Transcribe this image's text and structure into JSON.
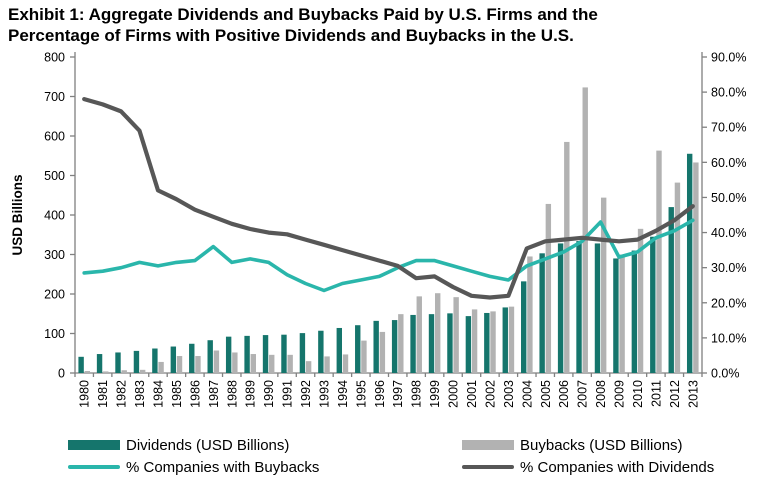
{
  "title": {
    "line1": "Exhibit 1: Aggregate Dividends and Buybacks Paid by U.S. Firms and the",
    "line2": "Percentage of Firms with Positive Dividends and Buybacks in the U.S."
  },
  "colors": {
    "dividends_bar": "#15756c",
    "buybacks_bar": "#b2b2b2",
    "pct_buybacks_line": "#2ab6ab",
    "pct_dividends_line": "#575757",
    "axis": "#808080",
    "text": "#000000",
    "background": "#ffffff"
  },
  "chart_data": {
    "type": "bar",
    "subtype": "combo-bar-line-dual-axis",
    "categories": [
      1980,
      1981,
      1982,
      1983,
      1984,
      1985,
      1986,
      1987,
      1988,
      1989,
      1990,
      1991,
      1992,
      1993,
      1994,
      1995,
      1996,
      1997,
      1998,
      1999,
      2000,
      2001,
      2002,
      2003,
      2004,
      2005,
      2006,
      2007,
      2008,
      2009,
      2010,
      2011,
      2012,
      2013
    ],
    "series": [
      {
        "name": "Dividends (USD Billions)",
        "type": "bar",
        "axis": "left",
        "color": "#15756c",
        "values": [
          41,
          48,
          52,
          56,
          62,
          67,
          74,
          83,
          92,
          94,
          96,
          97,
          101,
          107,
          114,
          121,
          132,
          134,
          147,
          149,
          151,
          144,
          152,
          166,
          232,
          303,
          328,
          334,
          328,
          290,
          310,
          345,
          420,
          555
        ]
      },
      {
        "name": "Buybacks (USD Billions)",
        "type": "bar",
        "axis": "left",
        "color": "#b2b2b2",
        "values": [
          5,
          4,
          7,
          8,
          28,
          43,
          43,
          57,
          52,
          48,
          46,
          46,
          30,
          42,
          47,
          82,
          104,
          149,
          194,
          202,
          192,
          161,
          156,
          168,
          295,
          428,
          585,
          723,
          444,
          300,
          365,
          563,
          482,
          533
        ]
      },
      {
        "name": "% Companies with Buybacks",
        "type": "line",
        "axis": "right",
        "color": "#2ab6ab",
        "values": [
          28.5,
          29,
          30,
          31.5,
          30.5,
          31.5,
          32,
          36,
          31.5,
          32.5,
          31.5,
          28,
          25.5,
          23.5,
          25.5,
          26.5,
          27.5,
          30,
          32,
          32,
          30.5,
          29,
          27.5,
          26.5,
          30.5,
          32.5,
          34.5,
          37.5,
          43,
          33,
          34.5,
          38.5,
          40.5,
          43.5
        ]
      },
      {
        "name": "% Companies with Dividends",
        "type": "line",
        "axis": "right",
        "color": "#575757",
        "values": [
          78,
          76.5,
          74.5,
          69,
          52,
          49.5,
          46.5,
          44.5,
          42.5,
          41,
          40,
          39.5,
          38,
          36.5,
          35,
          33.5,
          32,
          30.5,
          27,
          27.5,
          24.5,
          22,
          21.5,
          22,
          35.5,
          37.5,
          38,
          38.5,
          38,
          37.5,
          38,
          40.5,
          43.5,
          47.5
        ]
      }
    ],
    "left_axis": {
      "label": "USD Billions",
      "min": 0,
      "max": 800,
      "step": 100
    },
    "right_axis": {
      "min": 0,
      "max": 90,
      "step": 10,
      "suffix": "%",
      "decimals": 1
    },
    "grid": false,
    "legend_position": "bottom"
  },
  "legend": {
    "items": [
      {
        "label": "Dividends (USD Billions)",
        "swatch": "bar",
        "color": "#15756c"
      },
      {
        "label": "Buybacks (USD Billions)",
        "swatch": "bar",
        "color": "#b2b2b2"
      },
      {
        "label": "% Companies with Buybacks",
        "swatch": "line",
        "color": "#2ab6ab"
      },
      {
        "label": "% Companies with Dividends",
        "swatch": "line",
        "color": "#575757"
      }
    ]
  }
}
